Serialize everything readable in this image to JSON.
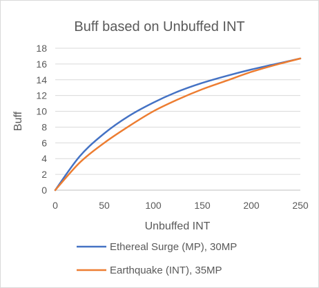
{
  "chart_data": {
    "type": "line",
    "title": "Buff based on Unbuffed INT",
    "xlabel": "Unbuffed INT",
    "ylabel": "Buff",
    "xlim": [
      0,
      250
    ],
    "ylim": [
      0,
      18
    ],
    "x_ticks": [
      0,
      50,
      100,
      150,
      200,
      250
    ],
    "y_ticks": [
      0,
      2,
      4,
      6,
      8,
      10,
      12,
      14,
      16,
      18
    ],
    "grid": "horizontal",
    "legend_position": "bottom",
    "series": [
      {
        "name": "Ethereal Surge (MP), 30MP",
        "color": "#4472C4",
        "x": [
          0,
          25,
          50,
          75,
          100,
          125,
          150,
          175,
          200,
          225,
          250
        ],
        "y": [
          0,
          4.3,
          7.2,
          9.4,
          11.1,
          12.5,
          13.6,
          14.5,
          15.3,
          16.0,
          16.7
        ]
      },
      {
        "name": "Earthquake (INT), 35MP",
        "color": "#ED7D31",
        "x": [
          0,
          25,
          50,
          75,
          100,
          125,
          150,
          175,
          200,
          225,
          250
        ],
        "y": [
          0,
          3.5,
          6.0,
          8.1,
          10.0,
          11.5,
          12.8,
          13.9,
          15.0,
          15.9,
          16.7
        ]
      }
    ]
  }
}
